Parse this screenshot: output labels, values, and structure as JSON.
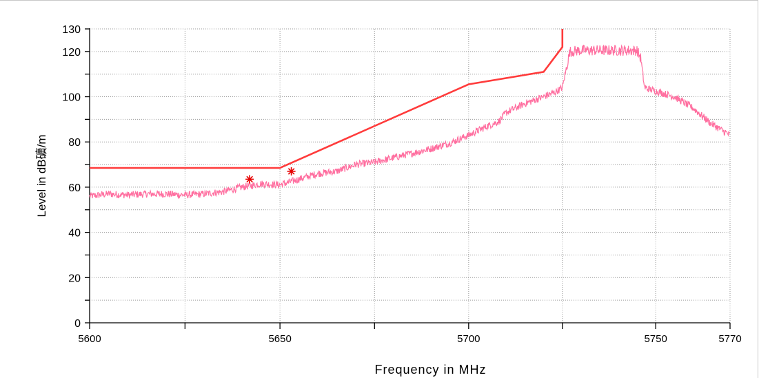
{
  "chart_data": {
    "type": "line",
    "xlabel": "Frequency in MHz",
    "ylabel": "Level in dB礦/m",
    "xlim": [
      5600,
      5770
    ],
    "ylim": [
      0,
      130
    ],
    "x_scale": "log",
    "grid": true,
    "x_ticks": [
      5600,
      5650,
      5700,
      5750,
      5770
    ],
    "x_tick_labels": [
      "5600",
      "5650",
      "5700",
      "5750",
      "5770"
    ],
    "x_minor_ticks": [
      5625,
      5675,
      5725
    ],
    "y_ticks": [
      0,
      20,
      40,
      60,
      80,
      100,
      120,
      130
    ],
    "y_tick_labels": [
      "0",
      "20",
      "40",
      "60",
      "80",
      "100",
      "120",
      "130"
    ],
    "y_minor_ticks": [
      10,
      30,
      50,
      70,
      90,
      110
    ],
    "colors": {
      "limit": "#ff3b3b",
      "measurement": "#ff6fa0",
      "markers": "#e60000",
      "grid": "#9a9a9a"
    },
    "series": [
      {
        "role": "limit line",
        "x": [
          5600,
          5650,
          5700,
          5720,
          5725,
          5725
        ],
        "y": [
          68.5,
          68.5,
          105.5,
          111,
          122,
          130
        ]
      },
      {
        "role": "measurement trace",
        "x": [
          5600,
          5605,
          5610,
          5615,
          5620,
          5625,
          5630,
          5635,
          5640,
          5645,
          5650,
          5655,
          5660,
          5665,
          5670,
          5675,
          5680,
          5685,
          5690,
          5695,
          5700,
          5705,
          5708,
          5710,
          5715,
          5720,
          5723,
          5725,
          5726,
          5727,
          5730,
          5735,
          5740,
          5745,
          5746,
          5747,
          5750,
          5755,
          5760,
          5765,
          5770
        ],
        "y": [
          56,
          57,
          56.5,
          57,
          57,
          56.5,
          57,
          58,
          60,
          61.5,
          61,
          63.5,
          66,
          67,
          70,
          71,
          73,
          75,
          77,
          79.5,
          83,
          87,
          89,
          93,
          97,
          100,
          102,
          104,
          112,
          120,
          120.5,
          120.5,
          120.5,
          120.5,
          117,
          104,
          102.5,
          100,
          95,
          88,
          83
        ]
      },
      {
        "role": "peak markers",
        "x": [
          5642,
          5653
        ],
        "y": [
          63.5,
          67
        ]
      }
    ]
  }
}
